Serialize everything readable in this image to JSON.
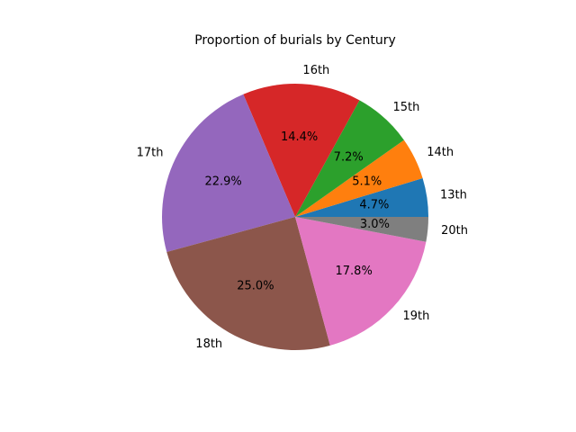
{
  "chart_data": {
    "type": "pie",
    "title": "Proportion of burials by Century",
    "start_angle_deg": 0,
    "direction": "counterclockwise",
    "slices": [
      {
        "label": "13th",
        "value": 4.7,
        "pct_label": "4.7%",
        "color": "#1f77b4"
      },
      {
        "label": "14th",
        "value": 5.1,
        "pct_label": "5.1%",
        "color": "#ff7f0e"
      },
      {
        "label": "15th",
        "value": 7.2,
        "pct_label": "7.2%",
        "color": "#2ca02c"
      },
      {
        "label": "16th",
        "value": 14.4,
        "pct_label": "14.4%",
        "color": "#d62728"
      },
      {
        "label": "17th",
        "value": 22.9,
        "pct_label": "22.9%",
        "color": "#9467bd"
      },
      {
        "label": "18th",
        "value": 25.0,
        "pct_label": "25.0%",
        "color": "#8c564b"
      },
      {
        "label": "19th",
        "value": 17.8,
        "pct_label": "17.8%",
        "color": "#e377c2"
      },
      {
        "label": "20th",
        "value": 3.0,
        "pct_label": "3.0%",
        "color": "#7f7f7f"
      }
    ]
  }
}
